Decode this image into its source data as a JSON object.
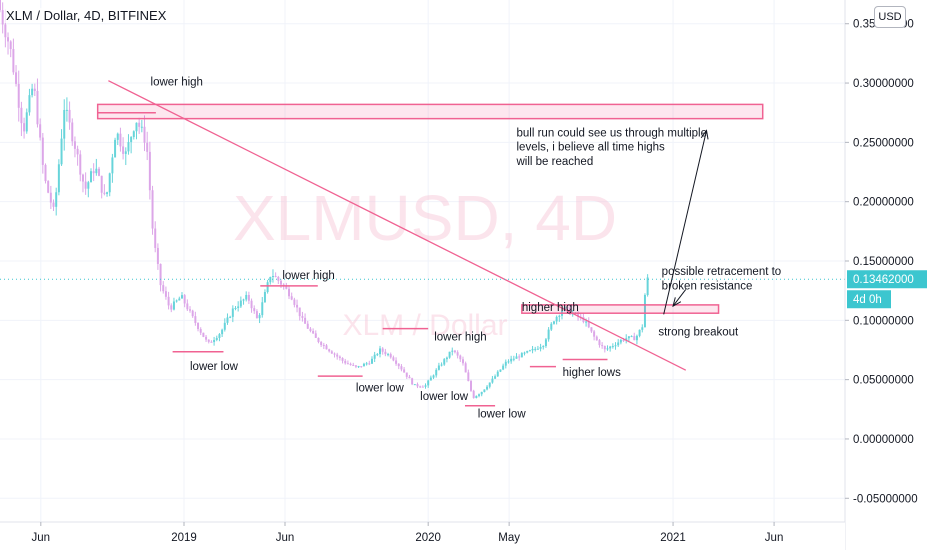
{
  "header": {
    "title": "XLM / Dollar, 4D, BITFINEX"
  },
  "toolbar": {
    "currency_label": "USD"
  },
  "chart_data": {
    "type": "candlestick",
    "title": "XLM / Dollar, 4D, BITFINEX",
    "watermark": "XLMUSD, 4D",
    "watermark_sub": "XLM / Dollar",
    "ylim": [
      -0.07,
      0.37
    ],
    "price_ticks": [
      {
        "value": 0.35,
        "label": "0.35000000"
      },
      {
        "value": 0.3,
        "label": "0.30000000"
      },
      {
        "value": 0.25,
        "label": "0.25000000"
      },
      {
        "value": 0.2,
        "label": "0.20000000"
      },
      {
        "value": 0.15,
        "label": "0.15000000"
      },
      {
        "value": 0.1,
        "label": "0.10000000"
      },
      {
        "value": 0.05,
        "label": "0.05000000"
      },
      {
        "value": 0.0,
        "label": "0.00000000"
      },
      {
        "value": -0.05,
        "label": "-0.05000000"
      }
    ],
    "time_ticks": [
      {
        "date": "2018-06-01",
        "label": "Jun"
      },
      {
        "date": "2019-01-01",
        "label": "2019"
      },
      {
        "date": "2019-06-01",
        "label": "Jun"
      },
      {
        "date": "2020-01-01",
        "label": "2020"
      },
      {
        "date": "2020-05-01",
        "label": "May"
      },
      {
        "date": "2021-01-01",
        "label": "2021"
      },
      {
        "date": "2021-06-01",
        "label": "Jun"
      }
    ],
    "xlim": [
      "2018-04-01",
      "2021-09-15"
    ],
    "last_price": {
      "value": 0.13462,
      "label": "0.13462000",
      "countdown": "4d 0h"
    },
    "price_path": [
      {
        "date": "2018-04-01",
        "price": 0.37
      },
      {
        "date": "2018-04-20",
        "price": 0.33
      },
      {
        "date": "2018-05-10",
        "price": 0.26
      },
      {
        "date": "2018-05-25",
        "price": 0.3
      },
      {
        "date": "2018-06-10",
        "price": 0.22
      },
      {
        "date": "2018-06-25",
        "price": 0.19
      },
      {
        "date": "2018-07-10",
        "price": 0.28
      },
      {
        "date": "2018-07-25",
        "price": 0.25
      },
      {
        "date": "2018-08-10",
        "price": 0.21
      },
      {
        "date": "2018-08-25",
        "price": 0.23
      },
      {
        "date": "2018-09-10",
        "price": 0.2
      },
      {
        "date": "2018-09-25",
        "price": 0.26
      },
      {
        "date": "2018-10-10",
        "price": 0.24
      },
      {
        "date": "2018-10-25",
        "price": 0.27
      },
      {
        "date": "2018-11-10",
        "price": 0.25
      },
      {
        "date": "2018-11-20",
        "price": 0.17
      },
      {
        "date": "2018-12-01",
        "price": 0.13
      },
      {
        "date": "2018-12-15",
        "price": 0.11
      },
      {
        "date": "2019-01-01",
        "price": 0.12
      },
      {
        "date": "2019-01-20",
        "price": 0.1
      },
      {
        "date": "2019-02-10",
        "price": 0.08
      },
      {
        "date": "2019-03-01",
        "price": 0.09
      },
      {
        "date": "2019-03-20",
        "price": 0.11
      },
      {
        "date": "2019-04-10",
        "price": 0.12
      },
      {
        "date": "2019-04-25",
        "price": 0.1
      },
      {
        "date": "2019-05-15",
        "price": 0.14
      },
      {
        "date": "2019-06-01",
        "price": 0.13
      },
      {
        "date": "2019-06-15",
        "price": 0.12
      },
      {
        "date": "2019-07-01",
        "price": 0.1
      },
      {
        "date": "2019-07-20",
        "price": 0.085
      },
      {
        "date": "2019-08-10",
        "price": 0.075
      },
      {
        "date": "2019-09-01",
        "price": 0.065
      },
      {
        "date": "2019-09-20",
        "price": 0.06
      },
      {
        "date": "2019-10-10",
        "price": 0.065
      },
      {
        "date": "2019-10-25",
        "price": 0.075
      },
      {
        "date": "2019-11-10",
        "price": 0.07
      },
      {
        "date": "2019-11-25",
        "price": 0.06
      },
      {
        "date": "2019-12-15",
        "price": 0.045
      },
      {
        "date": "2020-01-01",
        "price": 0.045
      },
      {
        "date": "2020-01-20",
        "price": 0.06
      },
      {
        "date": "2020-02-10",
        "price": 0.075
      },
      {
        "date": "2020-02-25",
        "price": 0.065
      },
      {
        "date": "2020-03-12",
        "price": 0.035
      },
      {
        "date": "2020-03-25",
        "price": 0.04
      },
      {
        "date": "2020-04-10",
        "price": 0.05
      },
      {
        "date": "2020-05-01",
        "price": 0.065
      },
      {
        "date": "2020-05-20",
        "price": 0.07
      },
      {
        "date": "2020-06-10",
        "price": 0.075
      },
      {
        "date": "2020-06-25",
        "price": 0.08
      },
      {
        "date": "2020-07-10",
        "price": 0.1
      },
      {
        "date": "2020-07-25",
        "price": 0.11
      },
      {
        "date": "2020-08-10",
        "price": 0.105
      },
      {
        "date": "2020-08-25",
        "price": 0.1
      },
      {
        "date": "2020-09-10",
        "price": 0.085
      },
      {
        "date": "2020-09-25",
        "price": 0.075
      },
      {
        "date": "2020-10-10",
        "price": 0.08
      },
      {
        "date": "2020-10-25",
        "price": 0.085
      },
      {
        "date": "2020-11-10",
        "price": 0.085
      },
      {
        "date": "2020-11-20",
        "price": 0.095
      },
      {
        "date": "2020-11-26",
        "price": 0.13462
      }
    ],
    "annotations": [
      {
        "text": "lower high",
        "date": "2018-11-12",
        "price": 0.298
      },
      {
        "text": "lower low",
        "date": "2019-01-10",
        "price": 0.058
      },
      {
        "text": "lower high",
        "date": "2019-05-28",
        "price": 0.135
      },
      {
        "text": "lower low",
        "date": "2019-09-15",
        "price": 0.04
      },
      {
        "text": "lower low",
        "date": "2019-12-20",
        "price": 0.033
      },
      {
        "text": "lower high",
        "date": "2020-01-10",
        "price": 0.083
      },
      {
        "text": "lower low",
        "date": "2020-03-15",
        "price": 0.018
      },
      {
        "text": "higher high",
        "date": "2020-05-20",
        "price": 0.108
      },
      {
        "text": "higher lows",
        "date": "2020-07-20",
        "price": 0.053
      },
      {
        "text": "strong breakout",
        "date": "2020-12-10",
        "price": 0.087
      },
      {
        "text": "possible retracement to",
        "date": "2020-12-15",
        "price": 0.138
      },
      {
        "text": "broken resistance",
        "date": "2020-12-15",
        "price": 0.126
      },
      {
        "text": "bull run could see us through multiple",
        "date": "2020-05-12",
        "price": 0.255
      },
      {
        "text": "levels, i believe all time highs",
        "date": "2020-05-12",
        "price": 0.243
      },
      {
        "text": "will be reached",
        "date": "2020-05-12",
        "price": 0.231
      }
    ],
    "trendline": {
      "from": {
        "date": "2018-09-10",
        "price": 0.302
      },
      "to": {
        "date": "2021-01-20",
        "price": 0.058
      }
    },
    "zones": [
      {
        "from": {
          "date": "2018-08-25",
          "price": 0.282
        },
        "to": {
          "date": "2021-05-15",
          "price": 0.27
        }
      },
      {
        "from": {
          "date": "2020-05-20",
          "price": 0.113
        },
        "to": {
          "date": "2021-03-10",
          "price": 0.106
        }
      }
    ],
    "level_lines": [
      {
        "from": "2018-08-25",
        "to": "2018-11-20",
        "price": 0.275
      },
      {
        "from": "2018-12-15",
        "to": "2019-03-01",
        "price": 0.0735
      },
      {
        "from": "2019-04-25",
        "to": "2019-07-20",
        "price": 0.129
      },
      {
        "from": "2019-07-20",
        "to": "2019-09-25",
        "price": 0.053
      },
      {
        "from": "2019-10-25",
        "to": "2020-01-01",
        "price": 0.093
      },
      {
        "from": "2020-02-25",
        "to": "2020-04-10",
        "price": 0.028
      },
      {
        "from": "2020-06-01",
        "to": "2020-07-10",
        "price": 0.061
      },
      {
        "from": "2020-07-20",
        "to": "2020-09-25",
        "price": 0.067
      }
    ],
    "arrows": [
      {
        "from": {
          "date": "2020-12-18",
          "price": 0.105
        },
        "to": {
          "date": "2021-02-20",
          "price": 0.26
        }
      },
      {
        "from": {
          "date": "2021-01-20",
          "price": 0.126
        },
        "to": {
          "date": "2021-01-01",
          "price": 0.112
        }
      }
    ]
  }
}
